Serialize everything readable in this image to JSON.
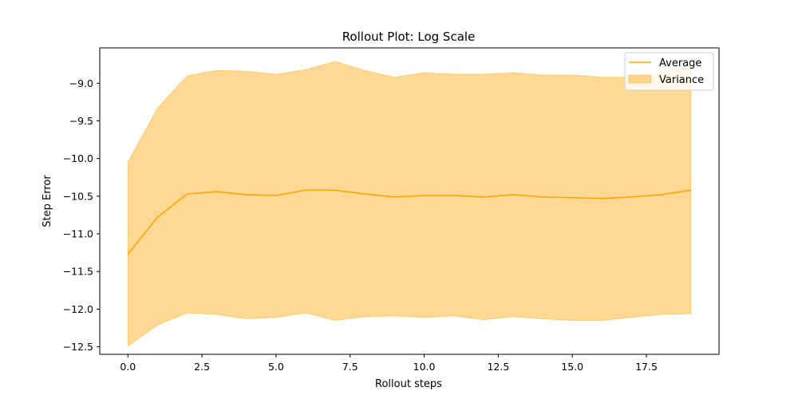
{
  "chart_data": {
    "type": "line",
    "title": "Rollout Plot: Log Scale",
    "xlabel": "Rollout steps",
    "ylabel": "Step Error",
    "xlim": [
      -0.95,
      19.95
    ],
    "ylim": [
      -12.6,
      -8.53
    ],
    "xticks": [
      0.0,
      2.5,
      5.0,
      7.5,
      10.0,
      12.5,
      15.0,
      17.5
    ],
    "xtick_labels": [
      "0.0",
      "2.5",
      "5.0",
      "7.5",
      "10.0",
      "12.5",
      "15.0",
      "17.5"
    ],
    "yticks": [
      -9.0,
      -9.5,
      -10.0,
      -10.5,
      -11.0,
      -11.5,
      -12.0,
      -12.5
    ],
    "ytick_labels": [
      "−9.0",
      "−9.5",
      "−10.0",
      "−10.5",
      "−11.0",
      "−11.5",
      "−12.0",
      "−12.5"
    ],
    "grid": false,
    "legend_position": "top-right",
    "x": [
      0,
      1,
      2,
      3,
      4,
      5,
      6,
      7,
      8,
      9,
      10,
      11,
      12,
      13,
      14,
      15,
      16,
      17,
      18,
      19
    ],
    "series": [
      {
        "name": "Average",
        "kind": "line",
        "color": "#ffa500",
        "values": [
          -11.27,
          -10.78,
          -10.47,
          -10.44,
          -10.48,
          -10.49,
          -10.42,
          -10.42,
          -10.47,
          -10.51,
          -10.49,
          -10.49,
          -10.51,
          -10.48,
          -10.51,
          -10.52,
          -10.53,
          -10.51,
          -10.48,
          -10.42
        ]
      },
      {
        "name": "Variance",
        "kind": "band",
        "color": "#ffa500",
        "alpha": 0.42,
        "upper": [
          -10.05,
          -9.33,
          -8.9,
          -8.83,
          -8.84,
          -8.88,
          -8.82,
          -8.71,
          -8.83,
          -8.92,
          -8.86,
          -8.88,
          -8.88,
          -8.86,
          -8.89,
          -8.89,
          -8.92,
          -8.92,
          -8.87,
          -8.76
        ],
        "lower": [
          -12.49,
          -12.21,
          -12.05,
          -12.07,
          -12.13,
          -12.11,
          -12.05,
          -12.15,
          -12.1,
          -12.09,
          -12.11,
          -12.09,
          -12.14,
          -12.1,
          -12.13,
          -12.15,
          -12.15,
          -12.11,
          -12.07,
          -12.06
        ]
      }
    ]
  }
}
